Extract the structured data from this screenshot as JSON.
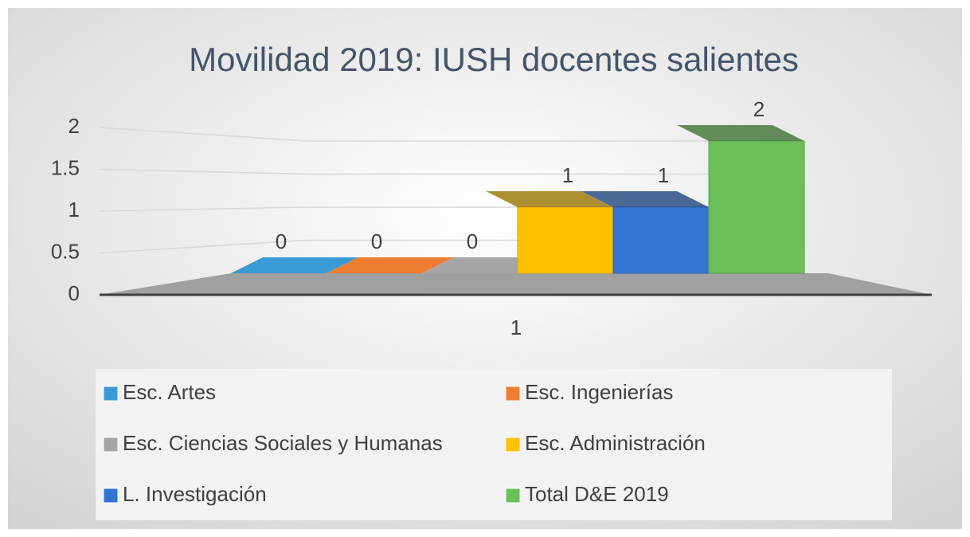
{
  "chart_data": {
    "type": "bar3d",
    "title": "Movilidad 2019: IUSH docentes salientes",
    "categories": [
      "1"
    ],
    "series": [
      {
        "name": "Esc. Artes",
        "color": "#3a9ad6",
        "values": [
          0
        ]
      },
      {
        "name": "Esc. Ingenierías",
        "color": "#ed7d31",
        "values": [
          0
        ]
      },
      {
        "name": "Esc. Ciencias Sociales y Humanas",
        "color": "#a5a5a5",
        "values": [
          0
        ]
      },
      {
        "name": "Esc. Administración",
        "color": "#ffc000",
        "values": [
          1
        ]
      },
      {
        "name": "L. Investigación",
        "color": "#3274cf",
        "values": [
          1
        ]
      },
      {
        "name": "Total D&E 2019",
        "color": "#6abf59",
        "values": [
          2
        ]
      }
    ],
    "ylim": [
      0,
      2
    ],
    "yticks": [
      0,
      0.5,
      1,
      1.5,
      2
    ],
    "grid": true,
    "legend": "bottom"
  }
}
